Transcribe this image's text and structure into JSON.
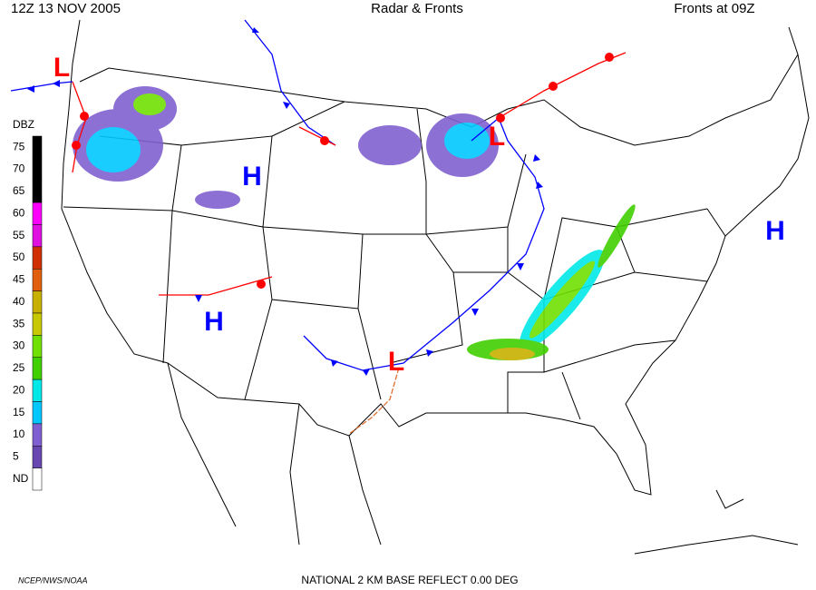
{
  "header": {
    "left": "12Z  13 NOV  2005",
    "center": "Radar & Fronts",
    "right": "Fronts at 09Z"
  },
  "legend": {
    "title": "DBZ",
    "scale": [
      {
        "label": "75",
        "color": "#000000"
      },
      {
        "label": "70",
        "color": "#000000"
      },
      {
        "label": "65",
        "color": "#000000"
      },
      {
        "label": "60",
        "color": "#ff00ff"
      },
      {
        "label": "55",
        "color": "#e010e0"
      },
      {
        "label": "50",
        "color": "#d03000"
      },
      {
        "label": "45",
        "color": "#e06010"
      },
      {
        "label": "40",
        "color": "#c8b000"
      },
      {
        "label": "35",
        "color": "#c8c800"
      },
      {
        "label": "30",
        "color": "#70e000"
      },
      {
        "label": "25",
        "color": "#40d000"
      },
      {
        "label": "20",
        "color": "#00e8e8"
      },
      {
        "label": "15",
        "color": "#00c8ff"
      },
      {
        "label": "10",
        "color": "#8060d0"
      },
      {
        "label": "5",
        "color": "#6848b0"
      },
      {
        "label": "ND",
        "color": "#ffffff"
      }
    ]
  },
  "centers": [
    {
      "label": "L",
      "color": "#ff0000"
    },
    {
      "label": "L",
      "color": "#ff0000"
    },
    {
      "label": "L",
      "color": "#ff0000"
    },
    {
      "label": "H",
      "color": "#0000ff"
    },
    {
      "label": "H",
      "color": "#0000ff"
    },
    {
      "label": "H",
      "color": "#0000ff"
    }
  ],
  "footer": {
    "agency": "NCEP/NWS/NOAA",
    "product": "NATIONAL 2 KM BASE REFLECT 0.00 DEG"
  }
}
